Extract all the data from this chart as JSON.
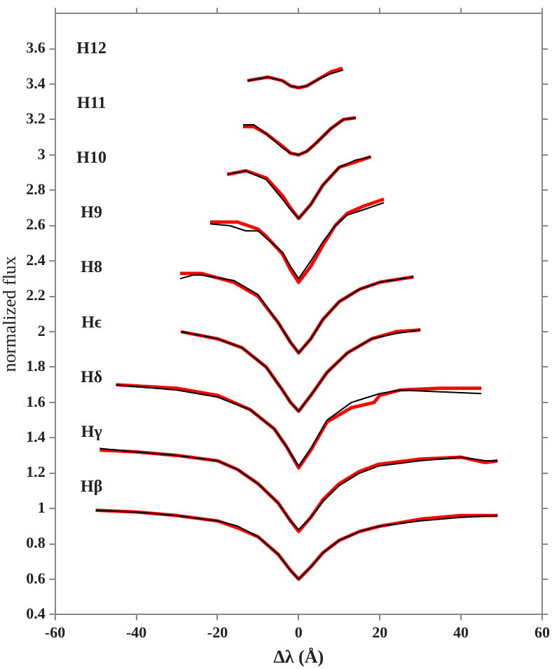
{
  "chart_data": {
    "type": "line",
    "xlabel": "Δλ (Å)",
    "ylabel": "normalized flux",
    "xlim": [
      -60,
      60
    ],
    "xticks": [
      -60,
      -40,
      -20,
      0,
      20,
      40,
      60
    ],
    "ylim": [
      0.4,
      3.8
    ],
    "yticks": [
      0.4,
      0.6,
      0.8,
      1,
      1.2,
      1.4,
      1.6,
      1.8,
      2,
      2.2,
      2.4,
      2.6,
      2.8,
      3,
      3.2,
      3.4,
      3.6
    ],
    "grid": false,
    "legend": false,
    "marker": "none",
    "line_style": "solid",
    "annotations": [
      "H12",
      "H11",
      "H10",
      "H9",
      "H8",
      "Hϵ",
      "Hδ",
      "Hγ",
      "Hβ"
    ],
    "series": [
      {
        "color": "#ff0000",
        "x": [
          -12.6,
          -7.5,
          -4,
          -2,
          0,
          2,
          5,
          8,
          10.8
        ],
        "values": [
          3.42,
          3.44,
          3.42,
          3.39,
          3.38,
          3.39,
          3.43,
          3.47,
          3.49
        ]
      },
      {
        "color": "#000000",
        "x": [
          -12.6,
          -7.5,
          -4,
          -2,
          0,
          2,
          5,
          8,
          11
        ],
        "values": [
          3.42,
          3.44,
          3.42,
          3.39,
          3.38,
          3.39,
          3.43,
          3.46,
          3.48
        ]
      },
      {
        "color": "#ff0000",
        "x": [
          -13.7,
          -11,
          -8,
          -4,
          -2,
          0,
          2,
          4,
          8,
          11,
          14.1
        ],
        "values": [
          3.16,
          3.16,
          3.12,
          3.05,
          3.01,
          3.0,
          3.02,
          3.06,
          3.15,
          3.2,
          3.21
        ]
      },
      {
        "color": "#000000",
        "x": [
          -13.7,
          -11,
          -8,
          -4,
          -2,
          0,
          2,
          4,
          8,
          11,
          14.1
        ],
        "values": [
          3.17,
          3.17,
          3.12,
          3.04,
          3.01,
          3.0,
          3.02,
          3.06,
          3.15,
          3.2,
          3.21
        ]
      },
      {
        "color": "#ff0000",
        "x": [
          -17.6,
          -13,
          -8,
          -4,
          -2,
          0,
          3,
          6,
          10,
          14,
          17.8
        ],
        "values": [
          2.89,
          2.91,
          2.87,
          2.77,
          2.7,
          2.64,
          2.72,
          2.83,
          2.93,
          2.96,
          2.99
        ]
      },
      {
        "color": "#000000",
        "x": [
          -17.6,
          -13,
          -8,
          -4,
          -2,
          0,
          3,
          6,
          10,
          14,
          17.8
        ],
        "values": [
          2.89,
          2.91,
          2.86,
          2.75,
          2.69,
          2.64,
          2.72,
          2.83,
          2.93,
          2.97,
          2.99
        ]
      },
      {
        "color": "#ff0000",
        "x": [
          -21.8,
          -15,
          -10,
          -8,
          -4,
          -2,
          0,
          3,
          6,
          9,
          12,
          16,
          21
        ],
        "values": [
          2.62,
          2.62,
          2.58,
          2.54,
          2.44,
          2.35,
          2.28,
          2.37,
          2.49,
          2.6,
          2.67,
          2.71,
          2.75
        ]
      },
      {
        "color": "#000000",
        "x": [
          -21.8,
          -17,
          -13,
          -10,
          -8,
          -4,
          -2,
          0,
          3,
          6,
          9,
          12,
          16,
          21
        ],
        "values": [
          2.61,
          2.6,
          2.57,
          2.57,
          2.53,
          2.45,
          2.37,
          2.3,
          2.4,
          2.51,
          2.6,
          2.66,
          2.69,
          2.73
        ]
      },
      {
        "color": "#ff0000",
        "x": [
          -29.2,
          -24,
          -16,
          -10,
          -5,
          -2,
          0,
          3,
          6,
          10,
          15,
          20,
          28.3
        ],
        "values": [
          2.33,
          2.33,
          2.28,
          2.2,
          2.05,
          1.94,
          1.88,
          1.96,
          2.07,
          2.17,
          2.24,
          2.28,
          2.31
        ]
      },
      {
        "color": "#000000",
        "x": [
          -29.2,
          -26,
          -24,
          -16,
          -10,
          -5,
          -2,
          0,
          3,
          6,
          10,
          15,
          20,
          28.3
        ],
        "values": [
          2.3,
          2.32,
          2.32,
          2.29,
          2.21,
          2.05,
          1.94,
          1.88,
          1.96,
          2.07,
          2.17,
          2.24,
          2.28,
          2.31
        ]
      },
      {
        "color": "#ff0000",
        "x": [
          -29,
          -20,
          -14,
          -8,
          -4,
          -2,
          0,
          3,
          7,
          12,
          18,
          24,
          30
        ],
        "values": [
          2.0,
          1.96,
          1.91,
          1.8,
          1.67,
          1.6,
          1.55,
          1.64,
          1.77,
          1.88,
          1.96,
          2.0,
          2.01
        ]
      },
      {
        "color": "#000000",
        "x": [
          -29,
          -20,
          -14,
          -8,
          -4,
          -2,
          0,
          3,
          7,
          12,
          18,
          24,
          30
        ],
        "values": [
          2.0,
          1.96,
          1.91,
          1.8,
          1.67,
          1.6,
          1.55,
          1.64,
          1.77,
          1.88,
          1.96,
          1.99,
          2.01
        ]
      },
      {
        "color": "#ff0000",
        "x": [
          -45,
          -30,
          -20,
          -12,
          -6,
          -3,
          0,
          3,
          7,
          13,
          18.6,
          20,
          25,
          35,
          45
        ],
        "values": [
          1.7,
          1.68,
          1.64,
          1.56,
          1.45,
          1.35,
          1.23,
          1.33,
          1.49,
          1.57,
          1.6,
          1.64,
          1.67,
          1.68,
          1.68
        ]
      },
      {
        "color": "#000000",
        "x": [
          -45,
          -30,
          -20,
          -12,
          -6,
          -3,
          0,
          3,
          7,
          13,
          18.6,
          20,
          25,
          35,
          45
        ],
        "values": [
          1.7,
          1.67,
          1.63,
          1.56,
          1.45,
          1.35,
          1.24,
          1.34,
          1.5,
          1.6,
          1.64,
          1.65,
          1.67,
          1.66,
          1.65
        ]
      },
      {
        "color": "#ff0000",
        "x": [
          -49,
          -40,
          -30,
          -20,
          -15,
          -10,
          -5,
          -2,
          0,
          3,
          6,
          10,
          15,
          19.7,
          30,
          40,
          46,
          49
        ],
        "values": [
          1.33,
          1.32,
          1.3,
          1.27,
          1.22,
          1.14,
          1.03,
          0.93,
          0.87,
          0.95,
          1.05,
          1.14,
          1.21,
          1.25,
          1.28,
          1.29,
          1.26,
          1.27
        ]
      },
      {
        "color": "#000000",
        "x": [
          -49,
          -40,
          -30,
          -20,
          -15,
          -10,
          -5,
          -2,
          0,
          3,
          6,
          10,
          15,
          19.7,
          30,
          40,
          46,
          49
        ],
        "values": [
          1.34,
          1.32,
          1.3,
          1.27,
          1.22,
          1.14,
          1.03,
          0.93,
          0.88,
          0.95,
          1.04,
          1.13,
          1.2,
          1.24,
          1.27,
          1.29,
          1.27,
          1.27
        ]
      },
      {
        "color": "#ff0000",
        "x": [
          -50,
          -40,
          -30,
          -20,
          -15,
          -10,
          -5,
          -2,
          0,
          3,
          6,
          10,
          15,
          20,
          30,
          40,
          49
        ],
        "values": [
          0.99,
          0.98,
          0.96,
          0.93,
          0.89,
          0.84,
          0.74,
          0.65,
          0.6,
          0.67,
          0.75,
          0.82,
          0.87,
          0.9,
          0.94,
          0.96,
          0.96
        ]
      },
      {
        "color": "#000000",
        "x": [
          -50,
          -40,
          -30,
          -20,
          -15,
          -10,
          -5,
          -2,
          0,
          3,
          6,
          10,
          15,
          20,
          30,
          40,
          49
        ],
        "values": [
          0.99,
          0.98,
          0.96,
          0.93,
          0.9,
          0.84,
          0.74,
          0.65,
          0.6,
          0.67,
          0.75,
          0.82,
          0.87,
          0.9,
          0.93,
          0.95,
          0.96
        ]
      }
    ]
  }
}
